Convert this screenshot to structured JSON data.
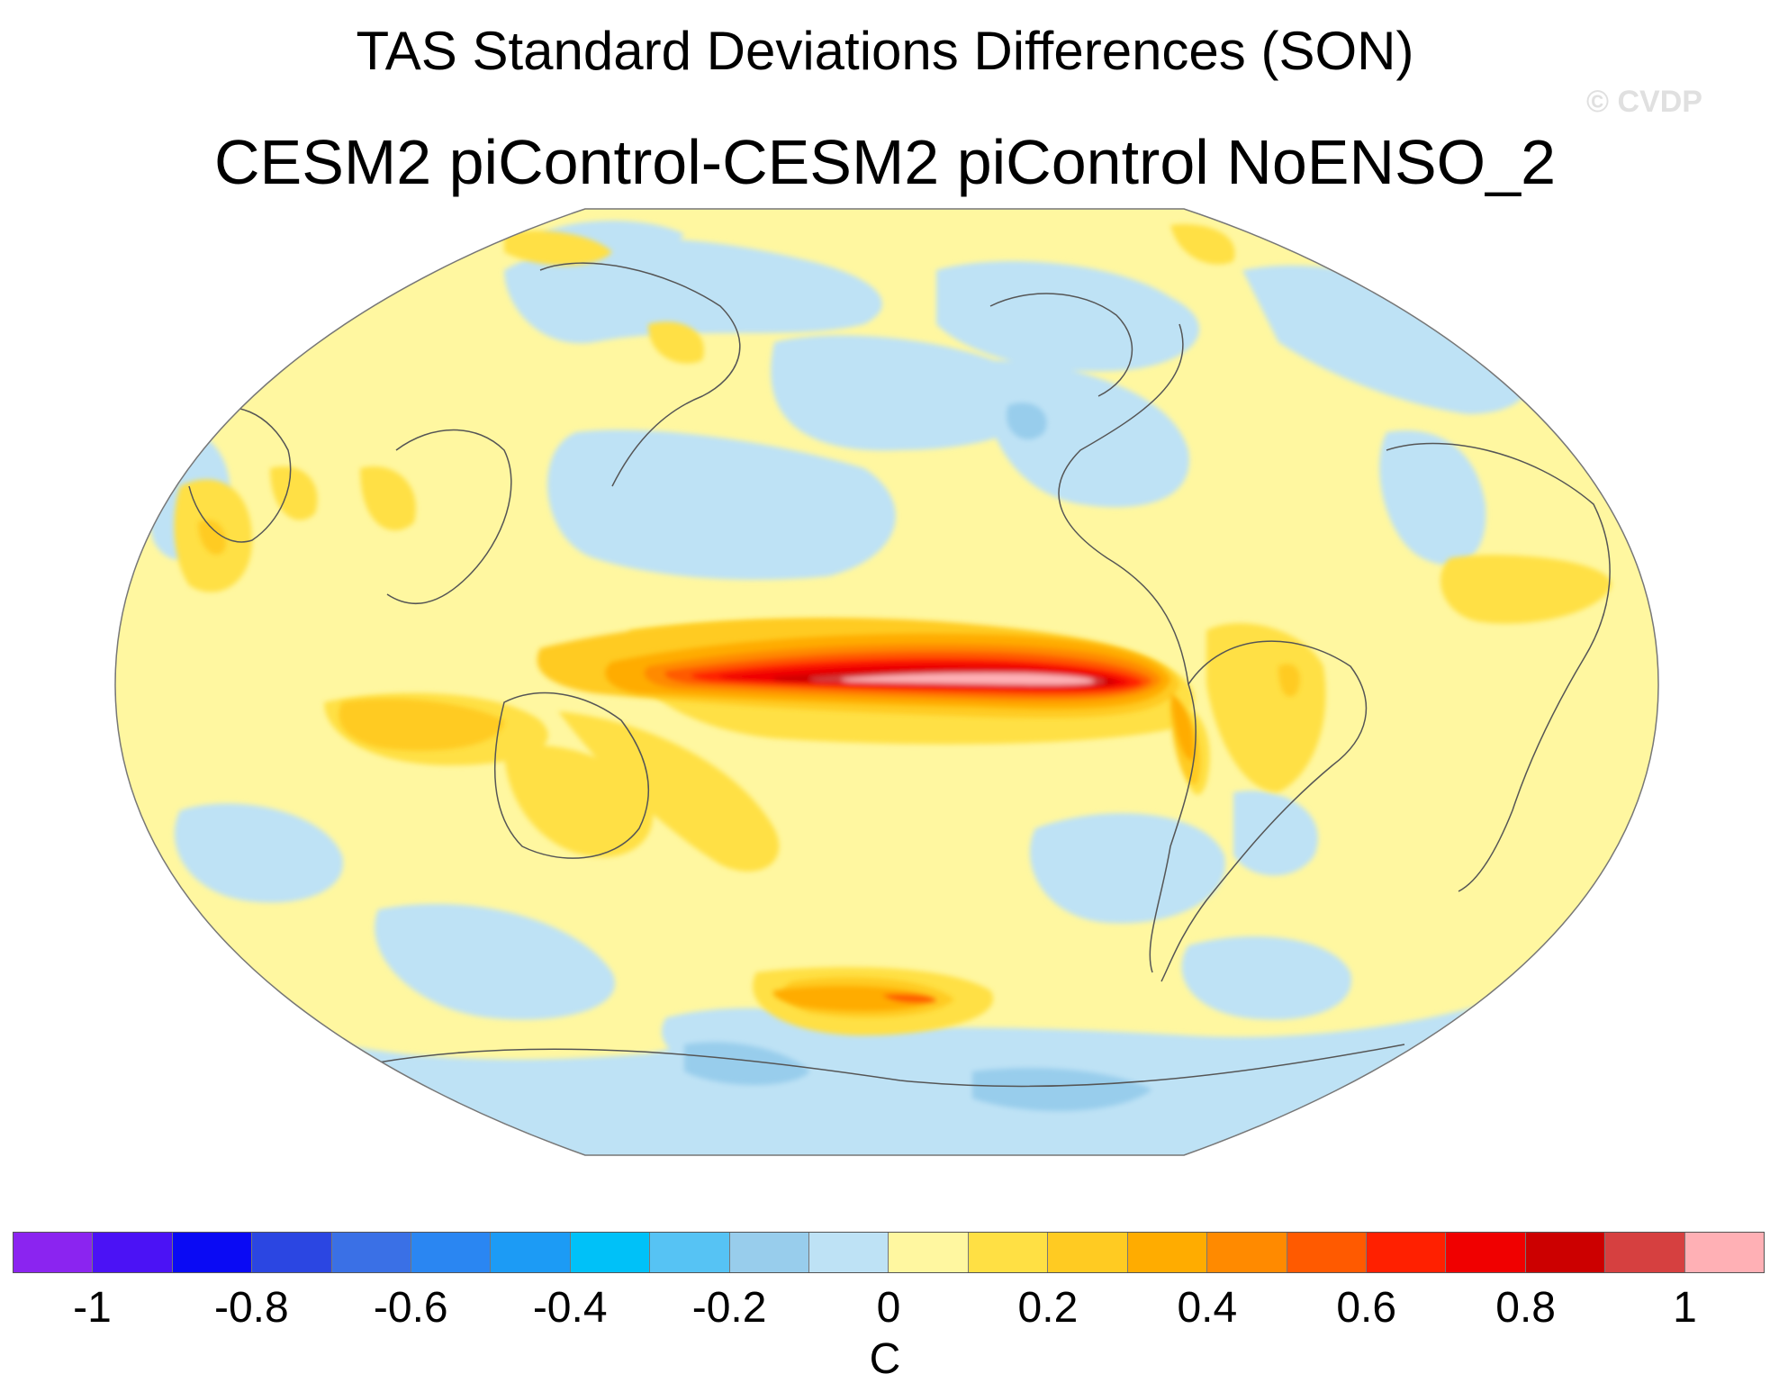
{
  "title": "TAS Standard Deviations Differences (SON)",
  "subtitle": "CESM2 piControl-CESM2 piControl NoENSO_2",
  "watermark": "© CVDP",
  "colorbar": {
    "unit": "C",
    "colors": [
      "#8b24f0",
      "#4b12f5",
      "#0a0af4",
      "#2b46e2",
      "#3a70e6",
      "#2a86f2",
      "#1c9bf5",
      "#00c1f8",
      "#56c3f4",
      "#98cdec",
      "#bee2f5",
      "#fff7a0",
      "#ffe044",
      "#ffcb22",
      "#ffac00",
      "#ff8a00",
      "#ff5a00",
      "#ff2000",
      "#f00000",
      "#cc0000",
      "#d64040",
      "#ffb0b5"
    ],
    "tick_labels": [
      "-1",
      "-0.8",
      "-0.6",
      "-0.4",
      "-0.2",
      "0",
      "0.2",
      "0.4",
      "0.6",
      "0.8",
      "1"
    ],
    "tick_values": [
      -1,
      -0.8,
      -0.6,
      -0.4,
      -0.2,
      0,
      0.2,
      0.4,
      0.6,
      0.8,
      1
    ],
    "range": [
      -1.1,
      1.1
    ]
  },
  "map": {
    "projection": "Robinson",
    "central_longitude": 180,
    "variable": "TAS standard deviation difference",
    "background_level": "0 to 0.1",
    "max_feature": "equatorial eastern Pacific maximum above 1"
  }
}
